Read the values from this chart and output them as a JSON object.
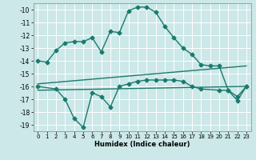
{
  "xlabel": "Humidex (Indice chaleur)",
  "background_color": "#cce8e8",
  "grid_color": "#ffffff",
  "line_color": "#1a7a6e",
  "xlim": [
    -0.5,
    23.5
  ],
  "ylim": [
    -19.5,
    -9.5
  ],
  "yticks": [
    -10,
    -11,
    -12,
    -13,
    -14,
    -15,
    -16,
    -17,
    -18,
    -19
  ],
  "xticks": [
    0,
    1,
    2,
    3,
    4,
    5,
    6,
    7,
    8,
    9,
    10,
    11,
    12,
    13,
    14,
    15,
    16,
    17,
    18,
    19,
    20,
    21,
    22,
    23
  ],
  "curve1_x": [
    0,
    1,
    2,
    3,
    4,
    5,
    6,
    7,
    8,
    9,
    10,
    11,
    12,
    13,
    14,
    15,
    16,
    17,
    18,
    19,
    20,
    21,
    22,
    23
  ],
  "curve1_y": [
    -14.0,
    -14.1,
    -13.2,
    -12.6,
    -12.5,
    -12.5,
    -12.2,
    -13.3,
    -11.7,
    -11.8,
    -10.1,
    -9.8,
    -9.8,
    -10.2,
    -11.3,
    -12.2,
    -13.0,
    -13.5,
    -14.3,
    -14.4,
    -14.4,
    -16.3,
    -17.1,
    -16.0
  ],
  "curve2_x": [
    0,
    2,
    3,
    4,
    5,
    6,
    7,
    8,
    9,
    10,
    11,
    12,
    13,
    14,
    15,
    16,
    17,
    18,
    20,
    21,
    22,
    23
  ],
  "curve2_y": [
    -16.0,
    -16.2,
    -17.0,
    -18.5,
    -19.2,
    -16.5,
    -16.8,
    -17.6,
    -16.0,
    -15.8,
    -15.6,
    -15.5,
    -15.5,
    -15.5,
    -15.5,
    -15.6,
    -16.0,
    -16.2,
    -16.3,
    -16.3,
    -16.8,
    -16.0
  ],
  "curve3_x": [
    0,
    23
  ],
  "curve3_y": [
    -15.8,
    -14.4
  ],
  "curve4_x": [
    0,
    23
  ],
  "curve4_y": [
    -16.3,
    -16.0
  ],
  "marker_style": "D",
  "marker_size": 2.5,
  "line_width": 1.0
}
